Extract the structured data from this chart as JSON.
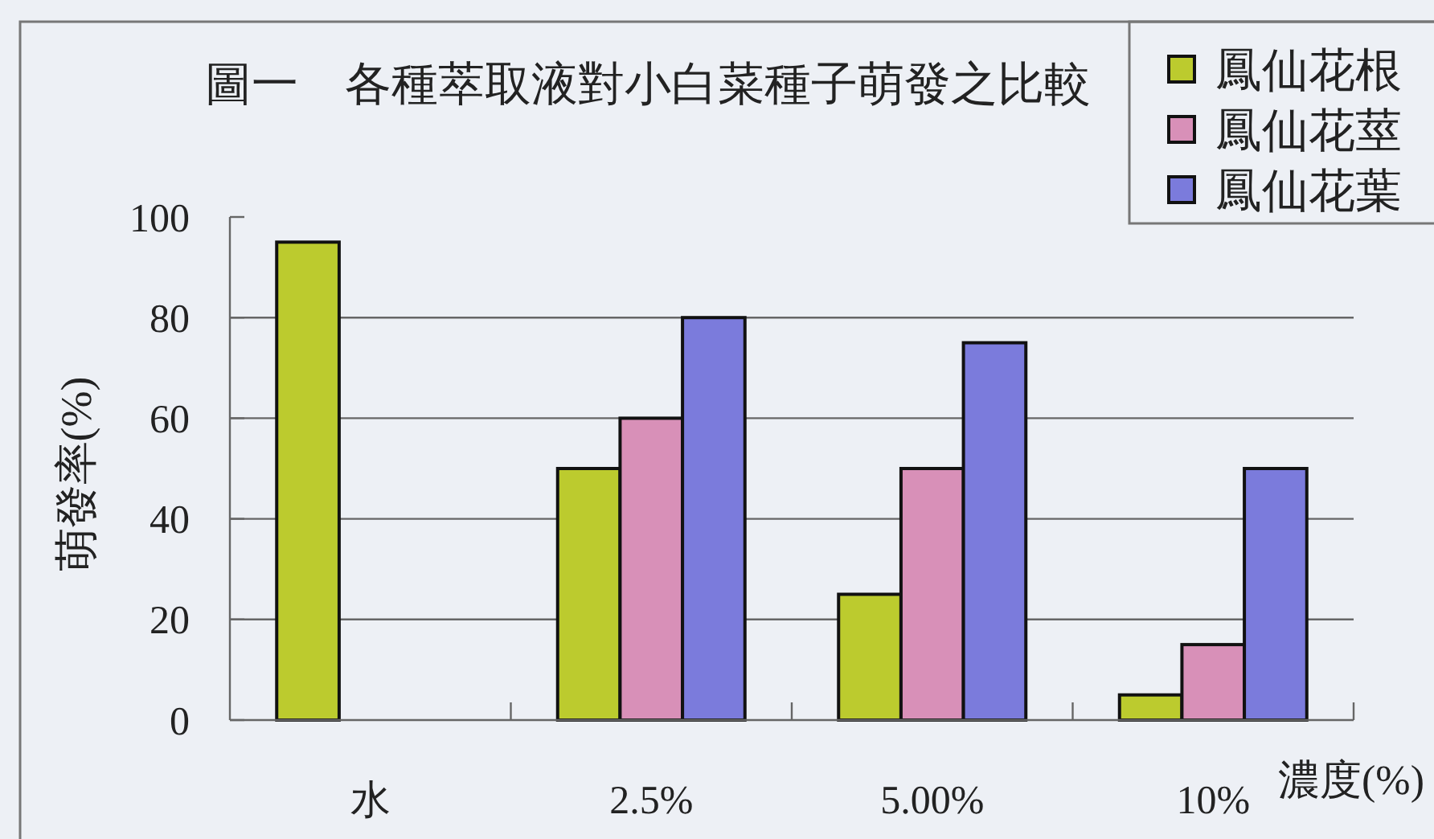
{
  "chart_data": {
    "type": "bar",
    "title": "圖一　各種萃取液對小白菜種子萌發之比較",
    "xlabel": "濃度(%)",
    "ylabel": "萌發率(%)",
    "categories": [
      "水",
      "2.5%",
      "5.00%",
      "10%"
    ],
    "series": [
      {
        "name": "鳳仙花根",
        "color": "#bccb2e",
        "values": [
          95,
          50,
          25,
          5
        ]
      },
      {
        "name": "鳳仙花莖",
        "color": "#d890b8",
        "values": [
          null,
          60,
          50,
          15
        ]
      },
      {
        "name": "鳳仙花葉",
        "color": "#7b7bdc",
        "values": [
          null,
          80,
          75,
          50
        ]
      }
    ],
    "ylim": [
      0,
      100
    ],
    "yticks": [
      0,
      20,
      40,
      60,
      80,
      100
    ],
    "grid": "y",
    "legend": "top right"
  }
}
